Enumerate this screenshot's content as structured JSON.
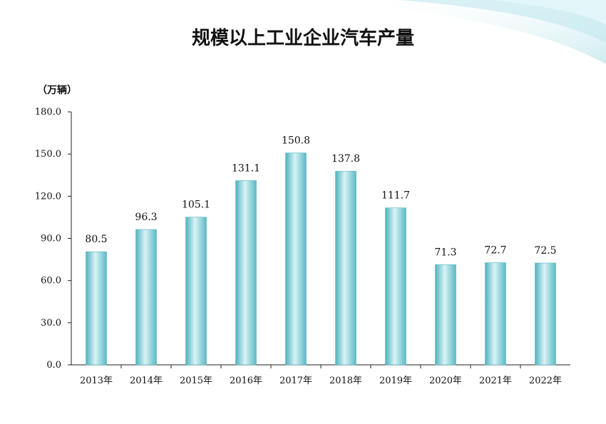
{
  "page": {
    "background": "#ffffff",
    "accent": "#8fd3dc"
  },
  "chart_data": {
    "type": "bar",
    "title": "规模以上工业企业汽车产量",
    "unit_label": "（万辆）",
    "categories": [
      "2013年",
      "2014年",
      "2015年",
      "2016年",
      "2017年",
      "2018年",
      "2019年",
      "2020年",
      "2021年",
      "2022年"
    ],
    "values": [
      80.5,
      96.3,
      105.1,
      131.1,
      150.8,
      137.8,
      111.7,
      71.3,
      72.7,
      72.5
    ],
    "value_labels": [
      "80.5",
      "96.3",
      "105.1",
      "131.1",
      "150.8",
      "137.8",
      "111.7",
      "71.3",
      "72.7",
      "72.5"
    ],
    "ylim": [
      0,
      180
    ],
    "yticks": [
      "0.0",
      "30.0",
      "60.0",
      "90.0",
      "120.0",
      "150.0",
      "180.0"
    ],
    "grid": false,
    "legend": "none",
    "bar_color": "#6fc4cf"
  }
}
